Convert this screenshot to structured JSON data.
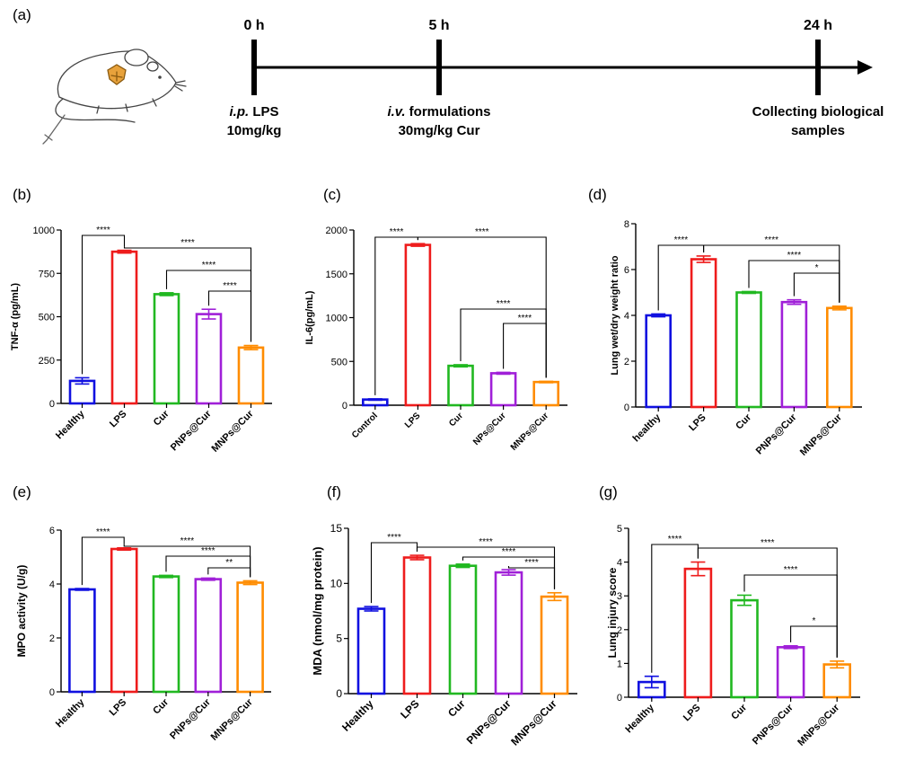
{
  "timeline": {
    "panel_label": "(a)",
    "events": [
      {
        "time": "0 h",
        "lines": [
          {
            "italic": "i.p.",
            "rest": " LPS"
          },
          {
            "italic": "",
            "rest": "10mg/kg"
          }
        ]
      },
      {
        "time": "5 h",
        "lines": [
          {
            "italic": "i.v.",
            "rest": " formulations"
          },
          {
            "italic": "",
            "rest": "30mg/kg Cur"
          }
        ]
      },
      {
        "time": "24 h",
        "lines": [
          {
            "italic": "",
            "rest": "Collecting biological"
          },
          {
            "italic": "",
            "rest": "samples"
          }
        ]
      }
    ]
  },
  "colors": [
    "#1010e0",
    "#ee1c1c",
    "#21b821",
    "#a020d8",
    "#ff8c00"
  ],
  "chart_data": [
    {
      "panel": "(b)",
      "type": "bar",
      "categories": [
        "Healthy",
        "LPS",
        "Cur",
        "PNPs@Cur",
        "MNPs@Cur"
      ],
      "values": [
        130,
        875,
        630,
        515,
        322
      ],
      "errors": [
        18,
        8,
        8,
        28,
        12
      ],
      "ylabel": "TNF-α (pg/mL)",
      "ylim": [
        0,
        1000
      ],
      "yticks": [
        0,
        250,
        500,
        750,
        1000
      ],
      "significance": [
        {
          "from": 0,
          "to": 1,
          "label": "****"
        },
        {
          "from": 1,
          "to": 4,
          "label": "****"
        },
        {
          "from": 2,
          "to": 4,
          "label": "****"
        },
        {
          "from": 3,
          "to": 4,
          "label": "****"
        }
      ]
    },
    {
      "panel": "(c)",
      "type": "bar",
      "categories": [
        "Control",
        "LPS",
        "Cur",
        "NPs@Cur",
        "MNPs@Cur"
      ],
      "values": [
        65,
        1830,
        450,
        365,
        265
      ],
      "errors": [
        8,
        15,
        12,
        10,
        8
      ],
      "ylabel": "IL-6(pg/mL)",
      "ylim": [
        0,
        2000
      ],
      "yticks": [
        0,
        500,
        1000,
        1500,
        2000
      ],
      "significance": [
        {
          "from": 0,
          "to": 1,
          "label": "****"
        },
        {
          "from": 1,
          "to": 4,
          "label": "****"
        },
        {
          "from": 2,
          "to": 4,
          "label": "****"
        },
        {
          "from": 3,
          "to": 4,
          "label": "****"
        }
      ]
    },
    {
      "panel": "(d)",
      "type": "bar",
      "categories": [
        "healthy",
        "LPS",
        "Cur",
        "PNPs@Cur",
        "MNPs@Cur"
      ],
      "values": [
        4.0,
        6.45,
        5.0,
        4.58,
        4.32
      ],
      "errors": [
        0.06,
        0.14,
        0.04,
        0.1,
        0.08
      ],
      "ylabel": "Lung wet/dry weight ratio",
      "ylim": [
        0,
        8
      ],
      "yticks": [
        0,
        2,
        4,
        6,
        8
      ],
      "significance": [
        {
          "from": 0,
          "to": 1,
          "label": "****"
        },
        {
          "from": 1,
          "to": 4,
          "label": "****"
        },
        {
          "from": 2,
          "to": 4,
          "label": "****"
        },
        {
          "from": 3,
          "to": 4,
          "label": "*"
        }
      ]
    },
    {
      "panel": "(e)",
      "type": "bar",
      "categories": [
        "Healthy",
        "LPS",
        "Cur",
        "PNPs@Cur",
        "MNPs@Cur"
      ],
      "values": [
        3.8,
        5.3,
        4.28,
        4.18,
        4.05
      ],
      "errors": [
        0.03,
        0.04,
        0.04,
        0.04,
        0.07
      ],
      "ylabel": "MPO activity (U/g)",
      "ylim": [
        0,
        6
      ],
      "yticks": [
        0,
        2,
        4,
        6
      ],
      "significance": [
        {
          "from": 0,
          "to": 1,
          "label": "****"
        },
        {
          "from": 1,
          "to": 4,
          "label": "****"
        },
        {
          "from": 2,
          "to": 4,
          "label": "****"
        },
        {
          "from": 3,
          "to": 4,
          "label": "**"
        }
      ]
    },
    {
      "panel": "(f)",
      "type": "bar",
      "categories": [
        "Healthy",
        "LPS",
        "Cur",
        "PNPs@Cur",
        "MNPs@Cur"
      ],
      "values": [
        7.7,
        12.35,
        11.6,
        11.0,
        8.8
      ],
      "errors": [
        0.2,
        0.2,
        0.15,
        0.25,
        0.35
      ],
      "ylabel": "MDA (nmol/mg protein)",
      "ylim": [
        0,
        15
      ],
      "yticks": [
        0,
        5,
        10,
        15
      ],
      "significance": [
        {
          "from": 0,
          "to": 1,
          "label": "****"
        },
        {
          "from": 1,
          "to": 4,
          "label": "****"
        },
        {
          "from": 2,
          "to": 4,
          "label": "****"
        },
        {
          "from": 3,
          "to": 4,
          "label": "****"
        }
      ]
    },
    {
      "panel": "(g)",
      "type": "bar",
      "categories": [
        "Healthy",
        "LPS",
        "Cur",
        "PNPs@Cur",
        "MNPs@Cur"
      ],
      "values": [
        0.45,
        3.8,
        2.87,
        1.48,
        0.97
      ],
      "errors": [
        0.17,
        0.2,
        0.15,
        0.04,
        0.1
      ],
      "ylabel": "Lung injury score",
      "ylim": [
        0,
        5
      ],
      "yticks": [
        0,
        1,
        2,
        3,
        4,
        5
      ],
      "significance": [
        {
          "from": 0,
          "to": 1,
          "label": "****"
        },
        {
          "from": 1,
          "to": 4,
          "label": "****"
        },
        {
          "from": 2,
          "to": 4,
          "label": "****"
        },
        {
          "from": 3,
          "to": 4,
          "label": "*"
        }
      ]
    }
  ]
}
